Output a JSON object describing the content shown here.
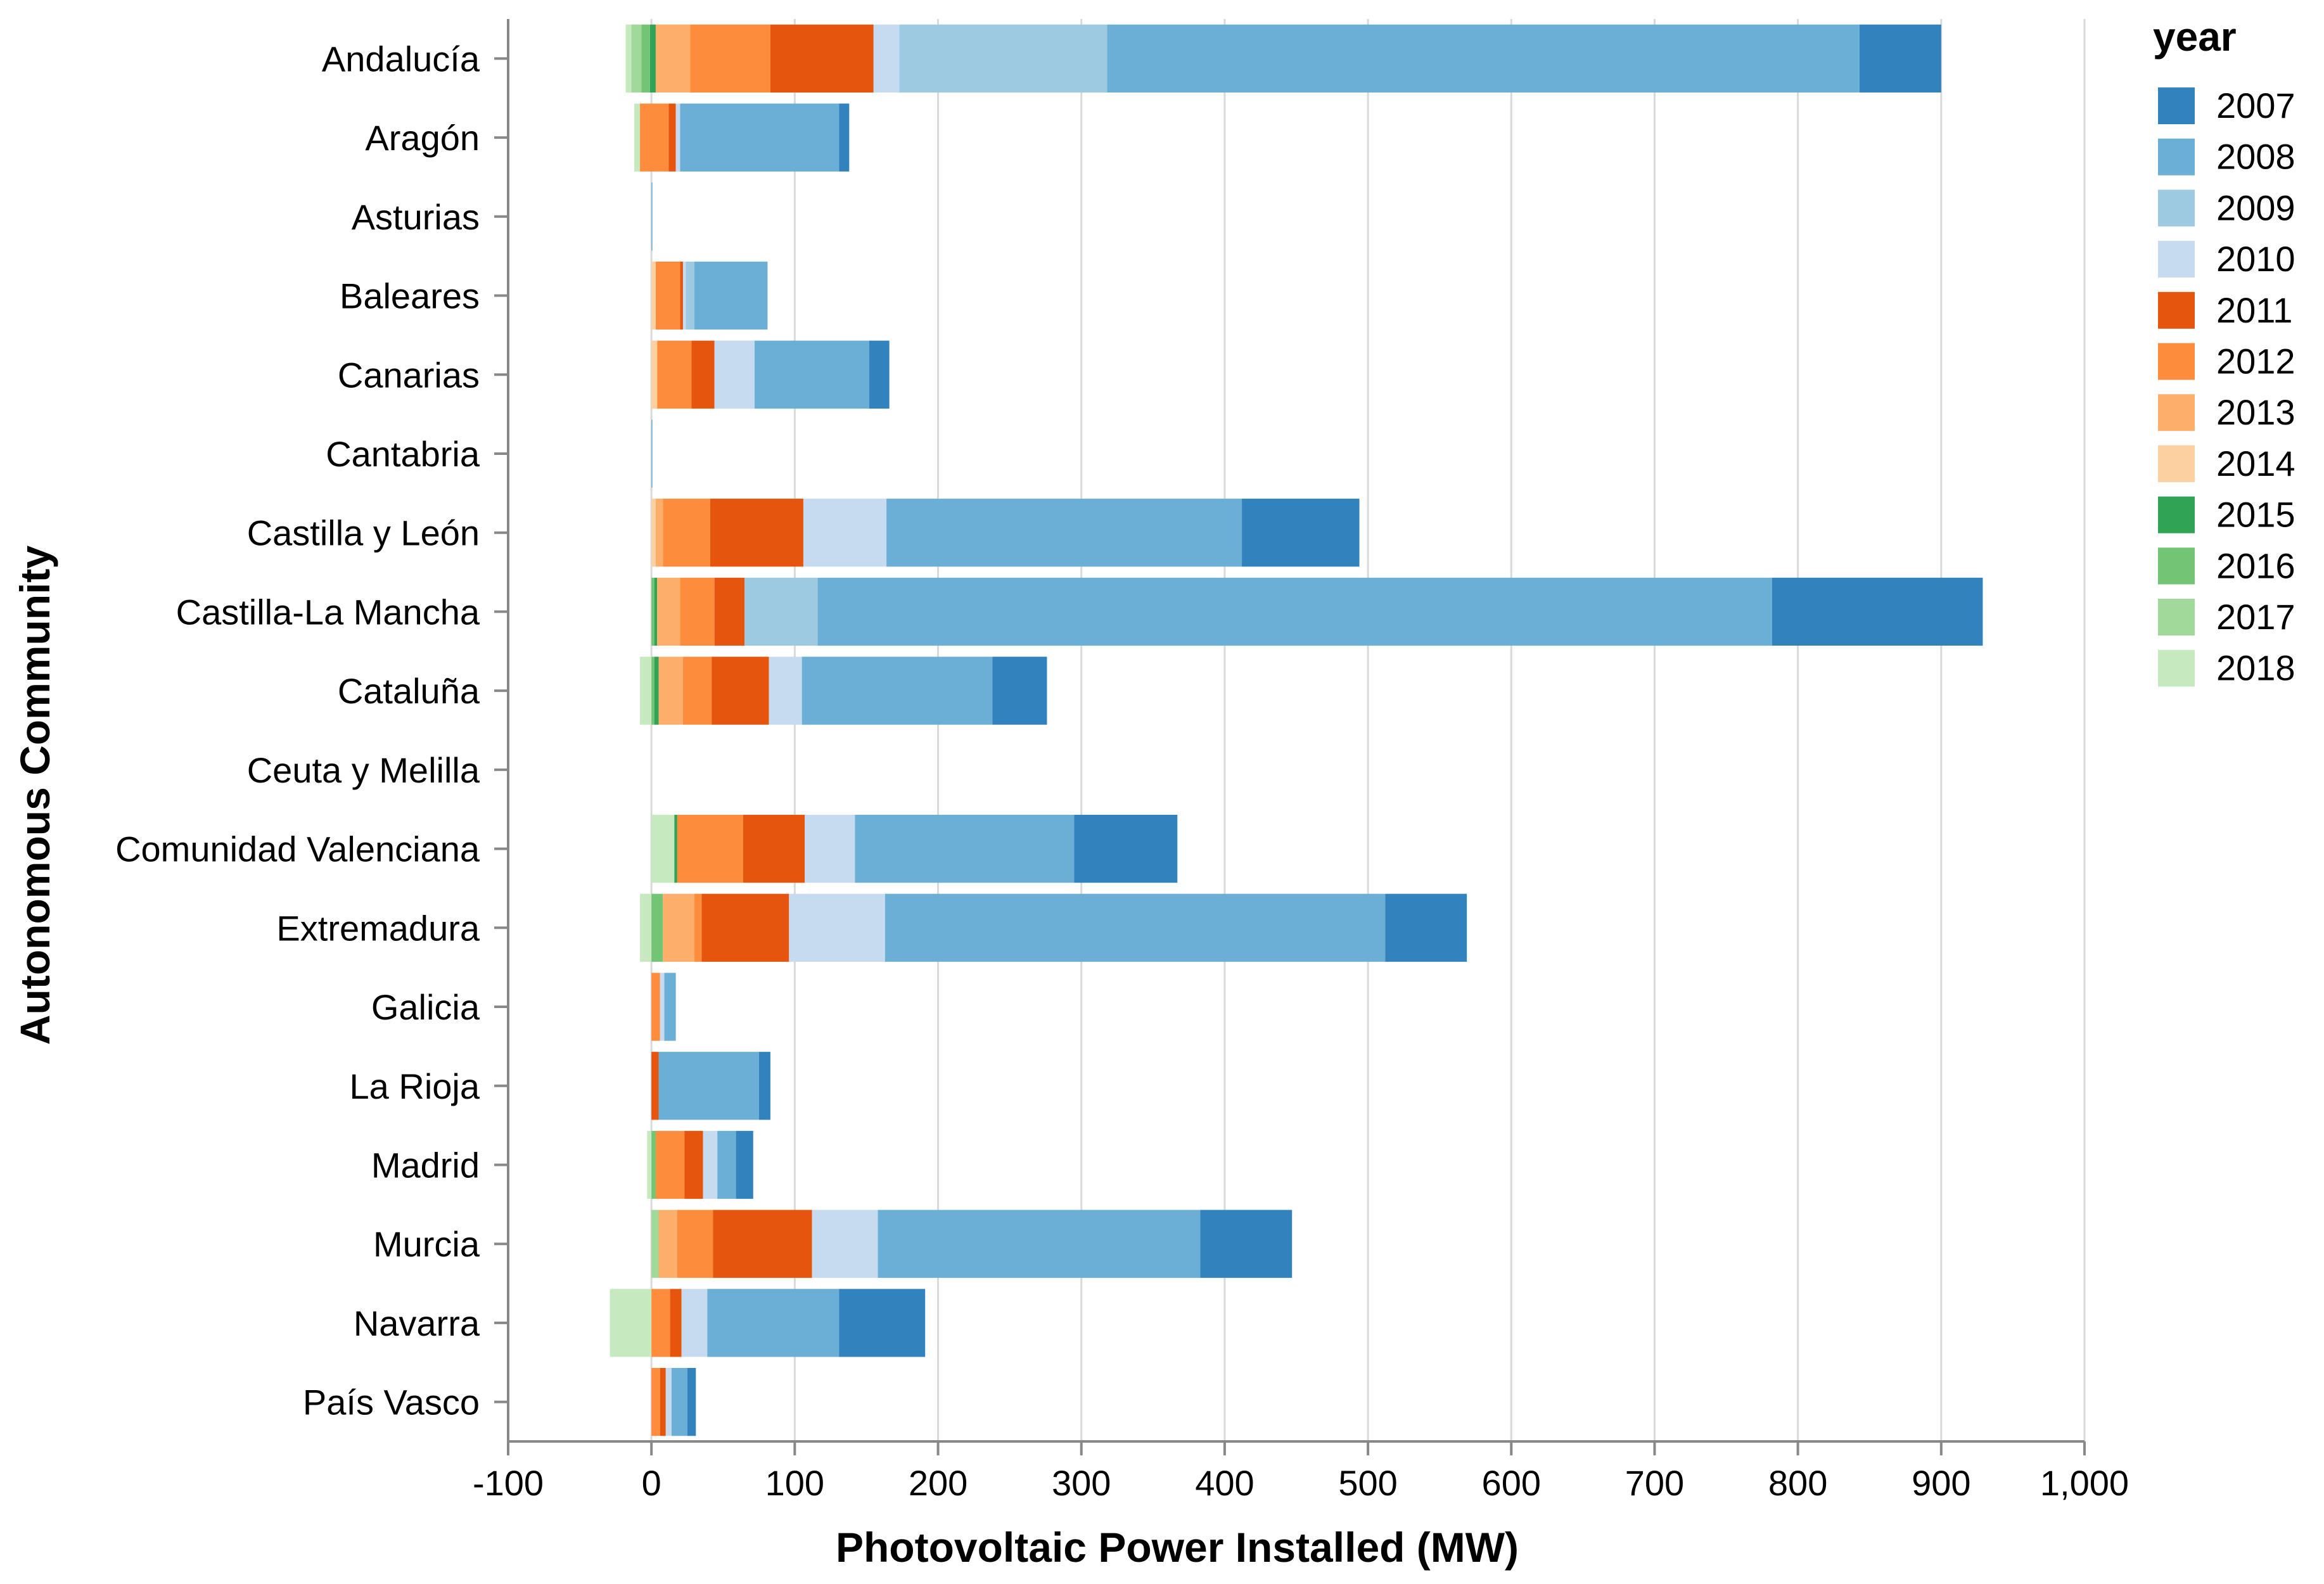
{
  "chart_data": {
    "type": "bar",
    "orientation": "horizontal",
    "stacked": true,
    "title": "",
    "xlabel": "Photovoltaic Power Installed (MW)",
    "ylabel": "Autonomous Community",
    "xlim": [
      -100,
      1000
    ],
    "xticks": [
      -100,
      0,
      100,
      200,
      300,
      400,
      500,
      600,
      700,
      800,
      900,
      1000
    ],
    "xtick_labels": [
      "-100",
      "0",
      "100",
      "200",
      "300",
      "400",
      "500",
      "600",
      "700",
      "800",
      "900",
      "1,000"
    ],
    "grid": true,
    "legend": {
      "title": "year",
      "position": "right",
      "entries": [
        {
          "name": "2007",
          "color": "#3182bd"
        },
        {
          "name": "2008",
          "color": "#6baed6"
        },
        {
          "name": "2009",
          "color": "#9ecae1"
        },
        {
          "name": "2010",
          "color": "#c6dbef"
        },
        {
          "name": "2011",
          "color": "#e6550d"
        },
        {
          "name": "2012",
          "color": "#fd8d3c"
        },
        {
          "name": "2013",
          "color": "#fdae6b"
        },
        {
          "name": "2014",
          "color": "#fdd0a2"
        },
        {
          "name": "2015",
          "color": "#31a354"
        },
        {
          "name": "2016",
          "color": "#74c476"
        },
        {
          "name": "2017",
          "color": "#a1d99b"
        },
        {
          "name": "2018",
          "color": "#c7e9c0"
        }
      ]
    },
    "stack_order": [
      "2018",
      "2017",
      "2016",
      "2015",
      "2014",
      "2013",
      "2012",
      "2011",
      "2010",
      "2009",
      "2008",
      "2007"
    ],
    "categories": [
      "Andalucía",
      "Aragón",
      "Asturias",
      "Baleares",
      "Canarias",
      "Cantabria",
      "Castilla y León",
      "Castilla-La Mancha",
      "Cataluña",
      "Ceuta y Melilla",
      "Comunidad Valenciana",
      "Extremadura",
      "Galicia",
      "La Rioja",
      "Madrid",
      "Murcia",
      "Navarra",
      "País Vasco"
    ],
    "series": [
      {
        "name": "2007",
        "values": [
          57,
          7,
          0,
          0,
          14,
          0,
          82,
          147,
          38,
          0,
          72,
          57,
          0,
          8,
          12,
          64,
          60,
          6
        ]
      },
      {
        "name": "2008",
        "values": [
          525,
          111,
          0.5,
          51,
          80,
          0.5,
          248,
          666,
          133,
          0,
          153,
          349,
          8,
          70,
          13,
          225,
          92,
          11
        ]
      },
      {
        "name": "2009",
        "values": [
          145,
          0,
          0,
          6,
          0,
          0,
          0,
          51,
          0,
          0,
          0,
          0,
          0,
          0,
          0,
          0,
          0,
          0
        ]
      },
      {
        "name": "2010",
        "values": [
          -18,
          -3,
          0,
          2,
          28,
          0,
          58,
          0,
          23,
          0,
          35,
          67,
          3,
          0,
          10,
          46,
          18,
          4
        ]
      },
      {
        "name": "2011",
        "values": [
          72,
          -5,
          0,
          2,
          16,
          0,
          65,
          21,
          40,
          0,
          43,
          61,
          0,
          5,
          13,
          69,
          8,
          4
        ]
      },
      {
        "name": "2012",
        "values": [
          56,
          20,
          0,
          17,
          24,
          0,
          33,
          24,
          20,
          0,
          46,
          5,
          6,
          0,
          20,
          25,
          13,
          6
        ]
      },
      {
        "name": "2013",
        "values": [
          24,
          0,
          0,
          0,
          0,
          0,
          5,
          16,
          17,
          0,
          0,
          22,
          0,
          0,
          0,
          13,
          0,
          0
        ]
      },
      {
        "name": "2014",
        "values": [
          0,
          0,
          0,
          3,
          4,
          0,
          3,
          0,
          0,
          0,
          0,
          0,
          0,
          0,
          0,
          0,
          0,
          0
        ]
      },
      {
        "name": "2015",
        "values": [
          4,
          0,
          0,
          0,
          0,
          0,
          0,
          2,
          3,
          0,
          2,
          0,
          0,
          0,
          0,
          0,
          0,
          0
        ]
      },
      {
        "name": "2016",
        "values": [
          6,
          0,
          0,
          0,
          0,
          0,
          0,
          2,
          2,
          0,
          0,
          8,
          0,
          0,
          3,
          0,
          0,
          0
        ]
      },
      {
        "name": "2017",
        "values": [
          7,
          0,
          0,
          0,
          0,
          0,
          0,
          0,
          0,
          0,
          0,
          0,
          0,
          0,
          0,
          5,
          0,
          0
        ]
      },
      {
        "name": "2018",
        "values": [
          4,
          -4,
          0,
          0,
          0,
          0,
          0,
          0,
          -8,
          0,
          16,
          -8,
          0,
          0,
          -3,
          0,
          -29,
          0
        ]
      }
    ]
  }
}
